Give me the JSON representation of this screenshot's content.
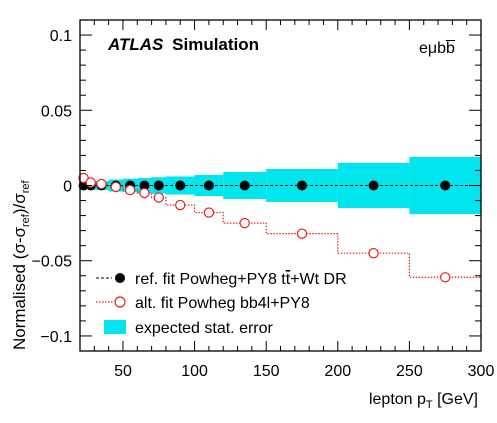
{
  "chart_data": {
    "type": "line",
    "atlas_label": {
      "bold_part": "ATLAS",
      "rest": "Simulation"
    },
    "channel_label": "eμbb̅",
    "ylabel": "Normalised (σ-σ_ref)/σ_ref",
    "ylabel_parts": {
      "main": "Normalised (σ-σ",
      "sub1": "ref",
      "mid": ")/σ",
      "sub2": "ref"
    },
    "xlabel": "lepton p_T [GeV]",
    "xlabel_parts": {
      "main": "lepton p",
      "sub": "T",
      "rest": " [GeV]"
    },
    "xlim": [
      20,
      300
    ],
    "ylim": [
      -0.11,
      0.11
    ],
    "x_ticks": [
      {
        "value": 50,
        "label": "50"
      },
      {
        "value": 100,
        "label": "100"
      },
      {
        "value": 150,
        "label": "150"
      },
      {
        "value": 200,
        "label": "200"
      },
      {
        "value": 250,
        "label": "250"
      },
      {
        "value": 300,
        "label": "300"
      }
    ],
    "y_ticks": [
      {
        "value": 0.1,
        "label": "0.1"
      },
      {
        "value": 0.05,
        "label": "0.05"
      },
      {
        "value": 0,
        "label": "0"
      },
      {
        "value": -0.05,
        "label": "−0.05"
      },
      {
        "value": -0.1,
        "label": "−0.1"
      }
    ],
    "bins": [
      {
        "low": 20,
        "high": 25
      },
      {
        "low": 25,
        "high": 30
      },
      {
        "low": 30,
        "high": 40
      },
      {
        "low": 40,
        "high": 50
      },
      {
        "low": 50,
        "high": 60
      },
      {
        "low": 60,
        "high": 70
      },
      {
        "low": 70,
        "high": 80
      },
      {
        "low": 80,
        "high": 100
      },
      {
        "low": 100,
        "high": 120
      },
      {
        "low": 120,
        "high": 150
      },
      {
        "low": 150,
        "high": 200
      },
      {
        "low": 200,
        "high": 250
      },
      {
        "low": 250,
        "high": 300
      }
    ],
    "x_centers": [
      22.5,
      27.5,
      35,
      45,
      55,
      65,
      75,
      90,
      110,
      135,
      175,
      225,
      275
    ],
    "series": [
      {
        "name": "ref. fit Powheg+PY8 tt̅+Wt DR",
        "color": "#000000",
        "marker": "filled-circle",
        "line": "dashed",
        "values": [
          0,
          0,
          0,
          0,
          0,
          0,
          0,
          0,
          0,
          0,
          0,
          0,
          0
        ]
      },
      {
        "name": "alt. fit Powheg bb4l+PY8",
        "color": "#e8231c",
        "marker": "open-circle",
        "line": "dotted",
        "values": [
          0.005,
          0.002,
          0.001,
          -0.001,
          -0.003,
          -0.005,
          -0.008,
          -0.013,
          -0.018,
          -0.025,
          -0.032,
          -0.045,
          -0.061
        ]
      }
    ],
    "stat_error": {
      "name": "expected stat. error",
      "color": "#00e5ee",
      "values": [
        0.002,
        0.0025,
        0.003,
        0.004,
        0.0045,
        0.005,
        0.0055,
        0.006,
        0.007,
        0.009,
        0.011,
        0.015,
        0.019
      ]
    },
    "legend": {
      "position": "bottom-left",
      "entries": [
        {
          "label": "ref. fit Powheg+PY8 tt̅+Wt DR",
          "label_parts": {
            "a": "ref. fit Powheg+PY8 t",
            "b": "t",
            "c": "+Wt DR"
          }
        },
        {
          "label": "alt. fit Powheg bb4l+PY8"
        },
        {
          "label": "expected stat. error"
        }
      ]
    },
    "grid": false
  }
}
